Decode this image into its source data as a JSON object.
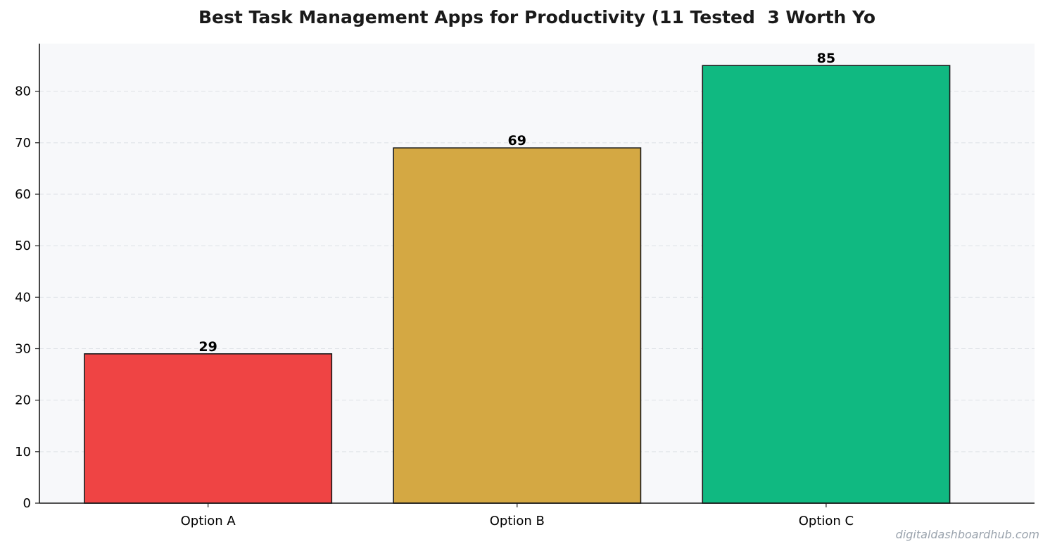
{
  "chart_data": {
    "type": "bar",
    "title": "Best Task Management Apps for Productivity (11 Tested  3 Worth Yo",
    "categories": [
      "Option A",
      "Option B",
      "Option C"
    ],
    "values": [
      29,
      69,
      85
    ],
    "colors": [
      "#ef4444",
      "#d4a843",
      "#10b981"
    ],
    "xlabel": "",
    "ylabel": "",
    "ylim": [
      0,
      89.25
    ],
    "yticks": [
      0,
      10,
      20,
      30,
      40,
      50,
      60,
      70,
      80
    ],
    "grid": "horizontal dashed",
    "plot_background": "#f7f8fa",
    "bar_edge_color": "#1a1a1a"
  },
  "watermark": "digitaldashboardhub.com"
}
